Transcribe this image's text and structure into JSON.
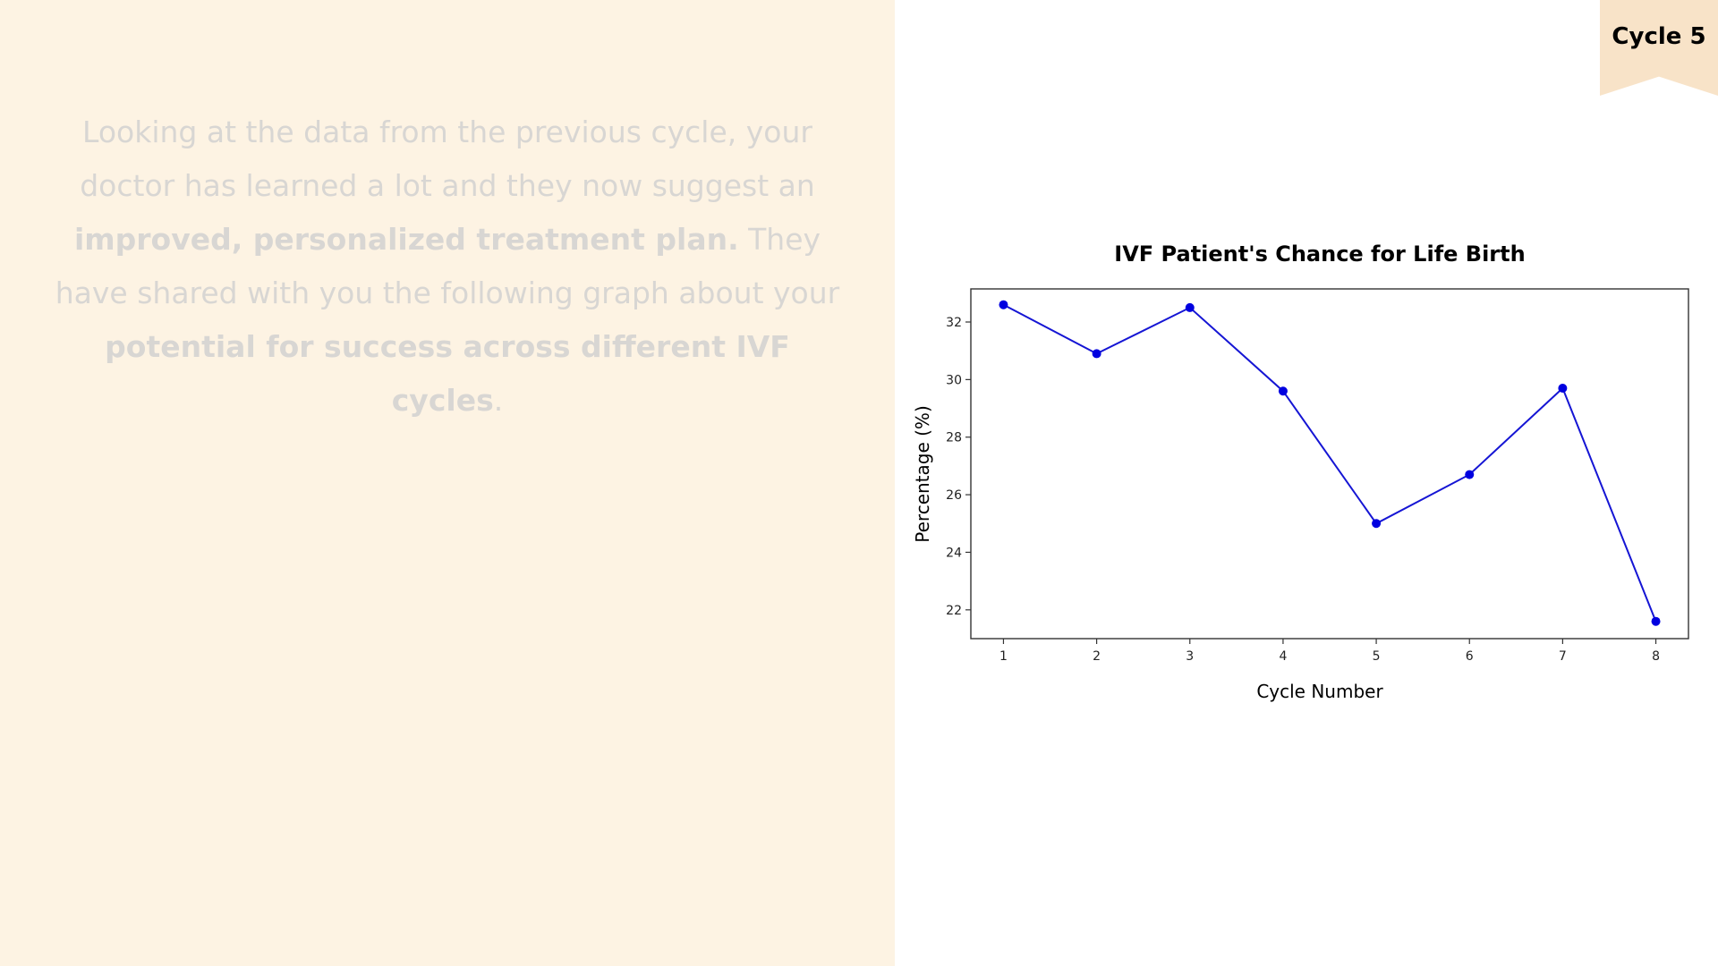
{
  "badge": {
    "label": "Cycle 5"
  },
  "intro": {
    "p1": "Looking at the data from the previous cycle, your doctor has learned a lot and they now suggest an ",
    "b1": "improved, personalized treatment plan.",
    "p2": " They have shared with you the following graph about your ",
    "b2": "potential for success across different IVF cycles",
    "p3": "."
  },
  "colors": {
    "left_panel": "#fdf3e3",
    "ribbon": "#f8e3c8",
    "series_line": "#1515d4",
    "series_marker": "#0000e0"
  },
  "chart_data": {
    "type": "line",
    "title": "IVF Patient's Chance for Life Birth",
    "xlabel": "Cycle Number",
    "ylabel": "Percentage (%)",
    "x": [
      1,
      2,
      3,
      4,
      5,
      6,
      7,
      8
    ],
    "x_tick_labels": [
      "1",
      "2",
      "3",
      "4",
      "5",
      "6",
      "7",
      "8"
    ],
    "y_ticks": [
      22,
      24,
      26,
      28,
      30,
      32
    ],
    "y_tick_labels": [
      "22",
      "24",
      "26",
      "28",
      "30",
      "32"
    ],
    "xlim": [
      0.65,
      8.35
    ],
    "ylim": [
      21.0,
      33.15
    ],
    "series": [
      {
        "values": [
          32.6,
          30.9,
          32.5,
          29.6,
          25.0,
          26.7,
          29.7,
          21.6
        ]
      }
    ],
    "markers": true,
    "grid": false,
    "legend": false
  }
}
